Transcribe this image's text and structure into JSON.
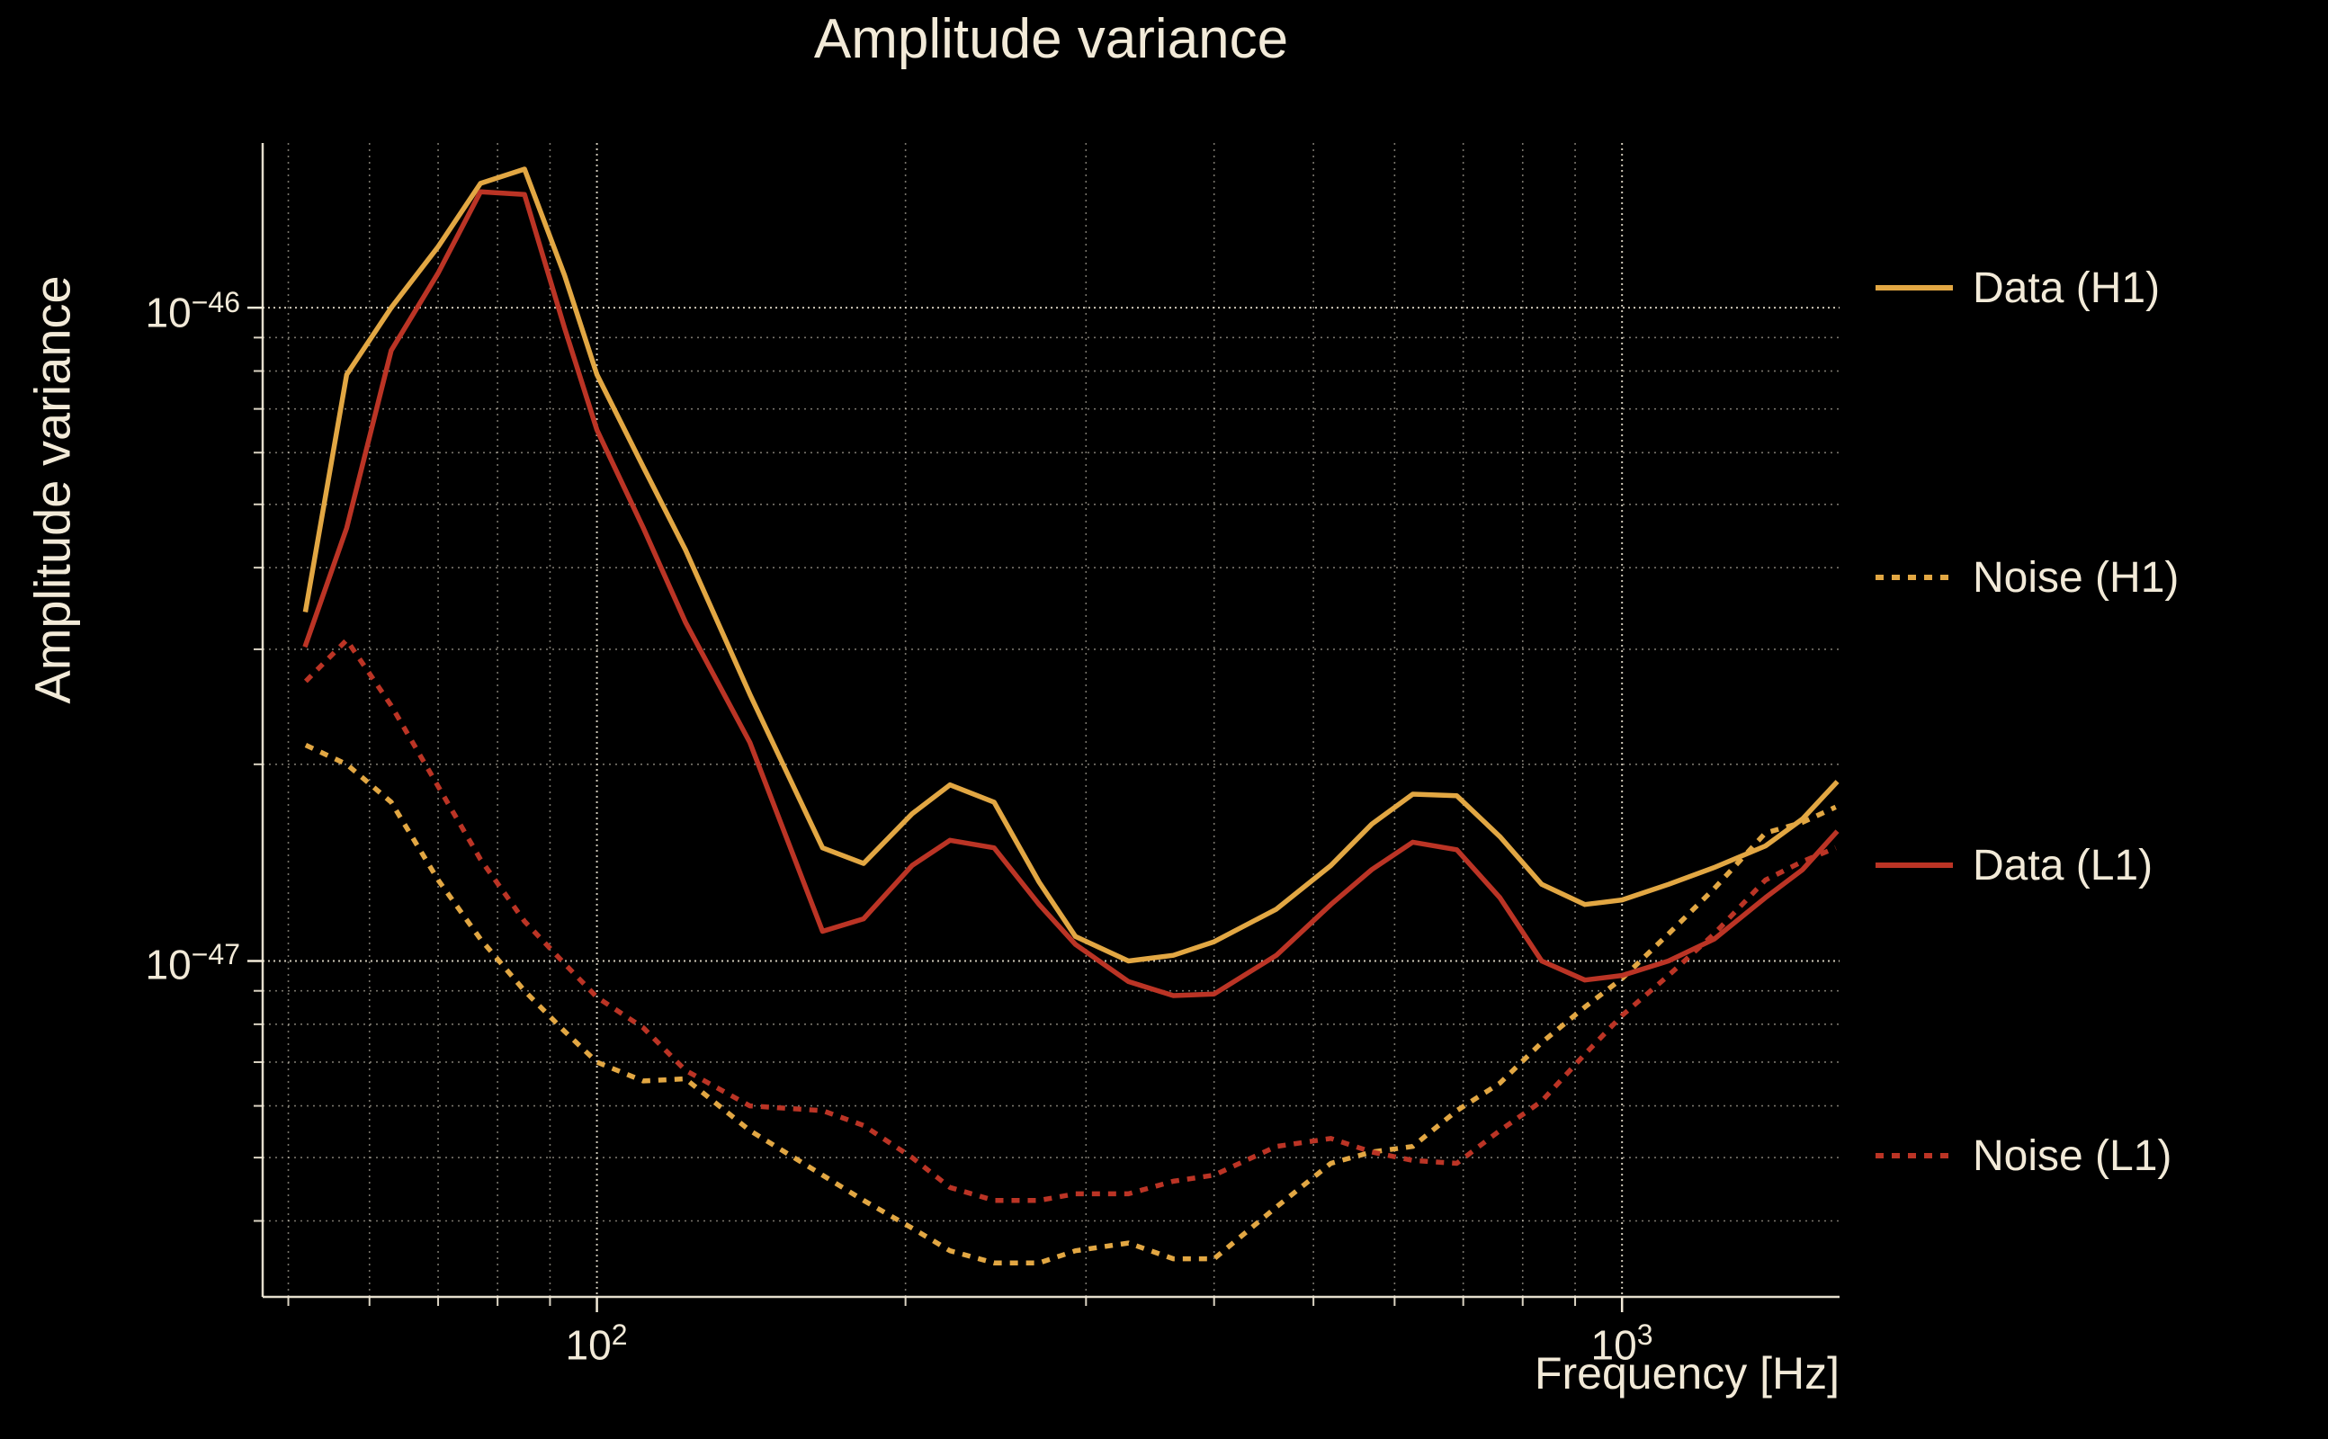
{
  "title": "Amplitude variance",
  "xlabel": "Frequency [Hz]",
  "ylabel": "Amplitude variance",
  "colors": {
    "background": "#000000",
    "text": "#f2ead8",
    "grid": "#f2ead8",
    "h1_gold": "#e2a743",
    "l1_red": "#bb3425"
  },
  "yticks": {
    "t46": {
      "base": "10",
      "exp": "−46"
    },
    "t47": {
      "base": "10",
      "exp": "−47"
    }
  },
  "xticks": {
    "t2": {
      "base": "10",
      "exp": "2"
    },
    "t3": {
      "base": "10",
      "exp": "3"
    }
  },
  "legend": {
    "items": [
      {
        "label": "Data (H1)",
        "color": "#e2a743",
        "style": "solid"
      },
      {
        "label": "Noise (H1)",
        "color": "#e2a743",
        "style": "dotted"
      },
      {
        "label": "Data (L1)",
        "color": "#bb3425",
        "style": "solid"
      },
      {
        "label": "Noise (L1)",
        "color": "#bb3425",
        "style": "dotted"
      }
    ]
  },
  "chart_data": {
    "type": "line",
    "title": "Amplitude variance",
    "xlabel": "Frequency [Hz]",
    "ylabel": "Amplitude variance",
    "xscale": "log",
    "yscale": "log",
    "xlim": [
      47.2,
      1630
    ],
    "ylim": [
      3.06e-48,
      1.787e-46
    ],
    "grid": true,
    "legend_position": "right-outside",
    "x_major_ticks": [
      100,
      1000
    ],
    "x_minor_ticks": [
      50,
      60,
      70,
      80,
      90,
      200,
      300,
      400,
      500,
      600,
      700,
      800,
      900
    ],
    "y_major_ticks": [
      1e-46,
      1e-47
    ],
    "y_minor_ticks": [
      9e-47,
      8e-47,
      7e-47,
      6e-47,
      5e-47,
      4e-47,
      3e-47,
      2e-47,
      9e-48,
      8e-48,
      7e-48,
      6e-48,
      5e-48,
      4e-48
    ],
    "x": [
      52,
      57,
      63,
      70,
      77,
      85,
      93,
      100,
      111,
      122,
      141,
      166,
      182,
      203,
      221,
      244,
      270,
      293,
      330,
      365,
      400,
      460,
      520,
      570,
      625,
      690,
      760,
      835,
      920,
      1000,
      1110,
      1230,
      1380,
      1500,
      1616
    ],
    "series": [
      {
        "name": "Data (H1)",
        "color": "#e2a743",
        "style": "solid",
        "values": [
          3.45e-47,
          7.9e-47,
          1e-46,
          1.24e-46,
          1.55e-46,
          1.63e-46,
          1.12e-46,
          7.9e-47,
          5.7e-47,
          4.26e-47,
          2.56e-47,
          1.49e-47,
          1.41e-47,
          1.68e-47,
          1.86e-47,
          1.75e-47,
          1.32e-47,
          1.09e-47,
          1e-47,
          1.02e-47,
          1.07e-47,
          1.2e-47,
          1.4e-47,
          1.62e-47,
          1.8e-47,
          1.79e-47,
          1.55e-47,
          1.31e-47,
          1.22e-47,
          1.24e-47,
          1.31e-47,
          1.39e-47,
          1.5e-47,
          1.65e-47,
          1.87e-47
        ]
      },
      {
        "name": "Noise (H1)",
        "color": "#e2a743",
        "style": "dotted",
        "values": [
          2.14e-47,
          2e-47,
          1.75e-47,
          1.33e-47,
          1.08e-47,
          9e-48,
          7.8e-48,
          7e-48,
          6.55e-48,
          6.6e-48,
          5.5e-48,
          4.7e-48,
          4.3e-48,
          3.9e-48,
          3.6e-48,
          3.45e-48,
          3.45e-48,
          3.6e-48,
          3.7e-48,
          3.5e-48,
          3.5e-48,
          4.2e-48,
          4.9e-48,
          5.1e-48,
          5.2e-48,
          5.9e-48,
          6.5e-48,
          7.5e-48,
          8.5e-48,
          9.4e-48,
          1.1e-47,
          1.29e-47,
          1.57e-47,
          1.63e-47,
          1.72e-47
        ]
      },
      {
        "name": "Data (L1)",
        "color": "#bb3425",
        "style": "solid",
        "values": [
          3.05e-47,
          4.6e-47,
          8.6e-47,
          1.13e-46,
          1.505e-46,
          1.49e-46,
          9.3e-47,
          6.5e-47,
          4.6e-47,
          3.3e-47,
          2.16e-47,
          1.11e-47,
          1.16e-47,
          1.4e-47,
          1.53e-47,
          1.49e-47,
          1.22e-47,
          1.06e-47,
          9.3e-48,
          8.85e-48,
          8.9e-48,
          1.02e-47,
          1.22e-47,
          1.38e-47,
          1.52e-47,
          1.48e-47,
          1.25e-47,
          1e-47,
          9.35e-48,
          9.5e-48,
          1e-47,
          1.08e-47,
          1.25e-47,
          1.38e-47,
          1.57e-47
        ]
      },
      {
        "name": "Noise (L1)",
        "color": "#bb3425",
        "style": "dotted",
        "values": [
          2.68e-47,
          3.1e-47,
          2.46e-47,
          1.85e-47,
          1.43e-47,
          1.15e-47,
          9.9e-48,
          8.8e-48,
          7.9e-48,
          6.8e-48,
          6e-48,
          5.9e-48,
          5.6e-48,
          5e-48,
          4.5e-48,
          4.3e-48,
          4.3e-48,
          4.4e-48,
          4.4e-48,
          4.6e-48,
          4.7e-48,
          5.2e-48,
          5.35e-48,
          5.1e-48,
          4.95e-48,
          4.9e-48,
          5.5e-48,
          6.1e-48,
          7.2e-48,
          8.25e-48,
          9.5e-48,
          1.1e-47,
          1.33e-47,
          1.42e-47,
          1.49e-47
        ]
      }
    ]
  }
}
